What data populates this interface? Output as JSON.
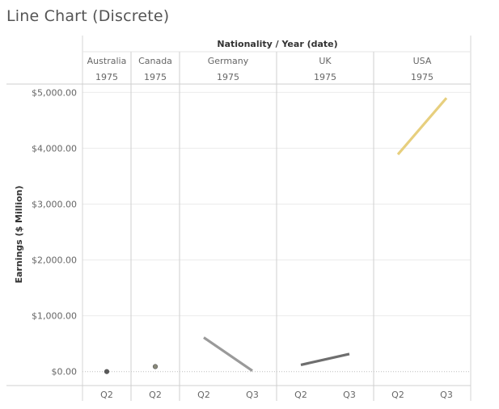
{
  "chart_data": {
    "title": "Line Chart (Discrete)",
    "type": "line",
    "column_header_title": "Nationality / Year (date)",
    "ylabel": "Earnings ($ Million)",
    "ylim": [
      -250,
      5150
    ],
    "y_ticks": [
      0,
      1000,
      2000,
      3000,
      4000,
      5000
    ],
    "y_tick_labels": [
      "$0.00",
      "$1,000.00",
      "$2,000.00",
      "$3,000.00",
      "$4,000.00",
      "$5,000.00"
    ],
    "grid": true,
    "panels": [
      {
        "nationality": "Australia",
        "year": "1975",
        "quarters": [
          "Q2"
        ],
        "values": [
          0
        ],
        "color": "#5a5a5a"
      },
      {
        "nationality": "Canada",
        "year": "1975",
        "quarters": [
          "Q2"
        ],
        "values": [
          90
        ],
        "color": "#8a8a7a"
      },
      {
        "nationality": "Germany",
        "year": "1975",
        "quarters": [
          "Q2",
          "Q3"
        ],
        "values": [
          610,
          15
        ],
        "color": "#9a9a9a"
      },
      {
        "nationality": "UK",
        "year": "1975",
        "quarters": [
          "Q2",
          "Q3"
        ],
        "values": [
          120,
          315
        ],
        "color": "#6e6e6e"
      },
      {
        "nationality": "USA",
        "year": "1975",
        "quarters": [
          "Q2",
          "Q3"
        ],
        "values": [
          3890,
          4900
        ],
        "color": "#e7cf7e"
      }
    ]
  }
}
